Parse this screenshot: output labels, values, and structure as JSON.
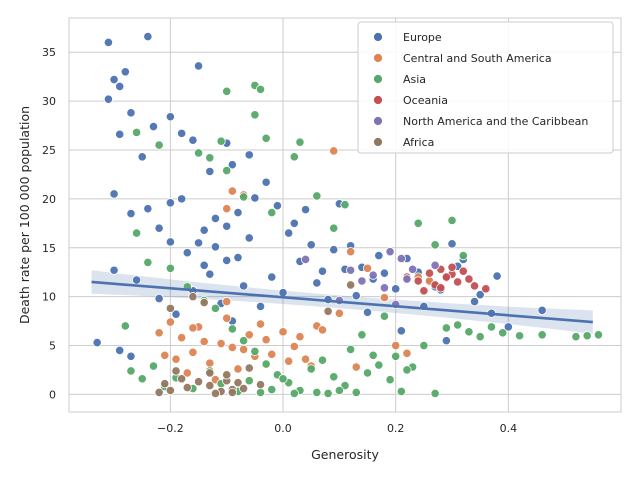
{
  "chart_data": {
    "type": "scatter",
    "title": "",
    "xlabel": "Generosity",
    "ylabel": "Death rate per 100 000 population",
    "xlim": [
      -0.38,
      0.6
    ],
    "ylim": [
      -1.8,
      38.5
    ],
    "x_ticks": [
      -0.2,
      0.0,
      0.2,
      0.4
    ],
    "x_tick_labels": [
      "−0.2",
      "0.0",
      "0.2",
      "0.4"
    ],
    "y_ticks": [
      0,
      5,
      10,
      15,
      20,
      25,
      30,
      35
    ],
    "y_tick_labels": [
      "0",
      "5",
      "10",
      "15",
      "20",
      "25",
      "30",
      "35"
    ],
    "grid": true,
    "legend_position": "top-right",
    "regression_line": {
      "x": [
        -0.34,
        0.55
      ],
      "y": [
        11.5,
        7.4
      ],
      "color": "#4c72b0"
    },
    "series": [
      {
        "name": "Europe",
        "color": "#4c72b0",
        "points": [
          [
            -0.31,
            36.0
          ],
          [
            -0.24,
            36.6
          ],
          [
            -0.15,
            33.6
          ],
          [
            -0.28,
            33.0
          ],
          [
            -0.3,
            32.2
          ],
          [
            -0.31,
            30.2
          ],
          [
            -0.29,
            31.5
          ],
          [
            -0.27,
            28.8
          ],
          [
            -0.29,
            26.6
          ],
          [
            -0.25,
            24.3
          ],
          [
            -0.23,
            27.4
          ],
          [
            -0.2,
            28.4
          ],
          [
            -0.18,
            26.7
          ],
          [
            -0.16,
            26.0
          ],
          [
            -0.1,
            25.7
          ],
          [
            -0.06,
            24.5
          ],
          [
            -0.09,
            23.5
          ],
          [
            -0.13,
            22.8
          ],
          [
            -0.3,
            20.5
          ],
          [
            -0.27,
            18.5
          ],
          [
            -0.24,
            19.0
          ],
          [
            -0.22,
            17.0
          ],
          [
            -0.2,
            15.6
          ],
          [
            -0.17,
            14.5
          ],
          [
            -0.14,
            16.8
          ],
          [
            -0.12,
            15.1
          ],
          [
            -0.1,
            13.7
          ],
          [
            -0.08,
            18.6
          ],
          [
            -0.05,
            20.1
          ],
          [
            -0.03,
            21.7
          ],
          [
            -0.01,
            19.3
          ],
          [
            0.02,
            17.5
          ],
          [
            0.05,
            15.3
          ],
          [
            0.07,
            12.6
          ],
          [
            0.09,
            14.8
          ],
          [
            0.12,
            15.2
          ],
          [
            0.14,
            13.0
          ],
          [
            0.16,
            11.8
          ],
          [
            0.18,
            12.4
          ],
          [
            0.2,
            10.8
          ],
          [
            0.22,
            13.9
          ],
          [
            0.24,
            12.5
          ],
          [
            0.26,
            11.5
          ],
          [
            0.28,
            10.7
          ],
          [
            0.3,
            15.4
          ],
          [
            0.32,
            13.8
          ],
          [
            0.34,
            9.5
          ],
          [
            0.37,
            8.3
          ],
          [
            0.4,
            6.9
          ],
          [
            0.46,
            8.6
          ],
          [
            -0.26,
            11.7
          ],
          [
            -0.22,
            9.8
          ],
          [
            -0.19,
            8.2
          ],
          [
            -0.16,
            10.6
          ],
          [
            -0.13,
            12.3
          ],
          [
            -0.11,
            9.3
          ],
          [
            -0.09,
            7.5
          ],
          [
            -0.07,
            11.1
          ],
          [
            -0.04,
            9.0
          ],
          [
            -0.02,
            12.0
          ],
          [
            0.0,
            10.4
          ],
          [
            0.03,
            13.6
          ],
          [
            0.06,
            11.4
          ],
          [
            0.08,
            9.7
          ],
          [
            0.11,
            12.8
          ],
          [
            0.13,
            10.1
          ],
          [
            0.15,
            8.4
          ],
          [
            0.17,
            14.2
          ],
          [
            -0.3,
            12.7
          ],
          [
            -0.33,
            5.3
          ],
          [
            -0.29,
            4.5
          ],
          [
            -0.27,
            3.9
          ],
          [
            0.35,
            10.2
          ],
          [
            0.38,
            12.1
          ],
          [
            -0.06,
            16.0
          ],
          [
            -0.08,
            14.0
          ],
          [
            -0.15,
            15.5
          ],
          [
            -0.12,
            18.0
          ],
          [
            0.01,
            16.5
          ],
          [
            0.04,
            18.9
          ],
          [
            0.1,
            19.5
          ],
          [
            -0.2,
            19.6
          ],
          [
            -0.18,
            20.0
          ],
          [
            -0.14,
            13.2
          ],
          [
            -0.1,
            17.2
          ],
          [
            0.27,
            11.0
          ],
          [
            0.31,
            13.1
          ],
          [
            0.25,
            9.0
          ],
          [
            0.21,
            6.5
          ],
          [
            0.29,
            5.5
          ]
        ]
      },
      {
        "name": "Central and South America",
        "color": "#dd8452",
        "points": [
          [
            -0.2,
            7.4
          ],
          [
            -0.18,
            5.8
          ],
          [
            -0.16,
            4.3
          ],
          [
            -0.15,
            6.9
          ],
          [
            -0.13,
            3.2
          ],
          [
            -0.11,
            5.2
          ],
          [
            -0.1,
            7.8
          ],
          [
            -0.09,
            4.8
          ],
          [
            -0.08,
            2.6
          ],
          [
            -0.06,
            6.1
          ],
          [
            -0.05,
            3.9
          ],
          [
            -0.03,
            5.6
          ],
          [
            -0.02,
            4.1
          ],
          [
            0.0,
            6.4
          ],
          [
            0.01,
            3.4
          ],
          [
            0.03,
            5.9
          ],
          [
            0.05,
            2.9
          ],
          [
            0.06,
            7.0
          ],
          [
            -0.19,
            3.6
          ],
          [
            -0.17,
            2.2
          ],
          [
            -0.12,
            1.5
          ],
          [
            -0.1,
            9.5
          ],
          [
            -0.09,
            20.8
          ],
          [
            -0.07,
            20.4
          ],
          [
            -0.1,
            19.0
          ],
          [
            0.09,
            24.9
          ],
          [
            0.12,
            14.6
          ],
          [
            0.15,
            12.9
          ],
          [
            0.18,
            9.9
          ],
          [
            0.2,
            5.0
          ],
          [
            0.22,
            4.2
          ],
          [
            0.24,
            12.0
          ],
          [
            0.26,
            11.6
          ],
          [
            -0.22,
            6.3
          ],
          [
            -0.14,
            5.4
          ],
          [
            -0.07,
            4.6
          ],
          [
            -0.04,
            7.2
          ],
          [
            0.02,
            4.9
          ],
          [
            0.04,
            3.6
          ],
          [
            0.07,
            6.6
          ],
          [
            0.1,
            8.3
          ],
          [
            0.13,
            2.8
          ],
          [
            -0.21,
            4.0
          ],
          [
            -0.16,
            6.8
          ]
        ]
      },
      {
        "name": "Asia",
        "color": "#55a868",
        "points": [
          [
            -0.26,
            26.8
          ],
          [
            -0.22,
            25.5
          ],
          [
            -0.15,
            24.7
          ],
          [
            -0.13,
            24.2
          ],
          [
            -0.11,
            25.9
          ],
          [
            -0.1,
            31.0
          ],
          [
            -0.05,
            31.6
          ],
          [
            -0.04,
            31.2
          ],
          [
            -0.05,
            28.6
          ],
          [
            -0.03,
            26.2
          ],
          [
            0.02,
            24.3
          ],
          [
            0.03,
            25.8
          ],
          [
            -0.26,
            16.5
          ],
          [
            -0.24,
            13.5
          ],
          [
            -0.2,
            12.9
          ],
          [
            -0.17,
            11.0
          ],
          [
            -0.14,
            9.6
          ],
          [
            -0.12,
            8.8
          ],
          [
            -0.09,
            6.7
          ],
          [
            -0.07,
            5.5
          ],
          [
            -0.05,
            4.4
          ],
          [
            -0.03,
            3.1
          ],
          [
            -0.01,
            2.0
          ],
          [
            0.01,
            1.2
          ],
          [
            0.03,
            0.4
          ],
          [
            0.05,
            2.6
          ],
          [
            0.07,
            3.5
          ],
          [
            0.09,
            1.8
          ],
          [
            0.11,
            0.9
          ],
          [
            0.13,
            0.2
          ],
          [
            0.15,
            2.2
          ],
          [
            0.17,
            3.0
          ],
          [
            0.19,
            1.5
          ],
          [
            0.21,
            0.3
          ],
          [
            0.23,
            2.8
          ],
          [
            0.25,
            5.0
          ],
          [
            0.27,
            0.1
          ],
          [
            0.29,
            6.8
          ],
          [
            0.31,
            7.1
          ],
          [
            0.33,
            6.4
          ],
          [
            0.35,
            5.9
          ],
          [
            0.37,
            6.9
          ],
          [
            0.39,
            6.3
          ],
          [
            0.42,
            6.0
          ],
          [
            0.46,
            6.1
          ],
          [
            0.52,
            5.9
          ],
          [
            0.54,
            6.0
          ],
          [
            0.56,
            6.1
          ],
          [
            -0.28,
            7.0
          ],
          [
            -0.27,
            2.4
          ],
          [
            -0.25,
            1.6
          ],
          [
            -0.23,
            2.9
          ],
          [
            -0.21,
            0.8
          ],
          [
            -0.19,
            1.7
          ],
          [
            -0.16,
            0.6
          ],
          [
            -0.13,
            2.4
          ],
          [
            -0.11,
            1.1
          ],
          [
            -0.08,
            0.3
          ],
          [
            -0.06,
            1.4
          ],
          [
            -0.04,
            0.2
          ],
          [
            -0.02,
            0.5
          ],
          [
            0.0,
            1.6
          ],
          [
            0.02,
            0.1
          ],
          [
            0.06,
            0.2
          ],
          [
            0.08,
            0.1
          ],
          [
            0.1,
            0.4
          ],
          [
            0.12,
            4.6
          ],
          [
            0.14,
            6.1
          ],
          [
            0.16,
            4.0
          ],
          [
            0.18,
            8.0
          ],
          [
            0.2,
            3.9
          ],
          [
            0.22,
            2.5
          ],
          [
            0.24,
            17.5
          ],
          [
            0.27,
            15.3
          ],
          [
            0.3,
            17.8
          ],
          [
            0.32,
            14.2
          ],
          [
            0.06,
            20.3
          ],
          [
            0.09,
            17.0
          ],
          [
            0.11,
            19.4
          ],
          [
            -0.07,
            20.2
          ],
          [
            -0.02,
            18.6
          ],
          [
            -0.1,
            22.9
          ]
        ]
      },
      {
        "name": "Oceania",
        "color": "#c44e52",
        "points": [
          [
            0.22,
            12.0
          ],
          [
            0.24,
            11.6
          ],
          [
            0.26,
            12.4
          ],
          [
            0.27,
            11.2
          ],
          [
            0.28,
            12.8
          ],
          [
            0.29,
            11.9
          ],
          [
            0.3,
            12.3
          ],
          [
            0.31,
            11.5
          ],
          [
            0.32,
            12.6
          ],
          [
            0.33,
            11.8
          ],
          [
            0.34,
            11.1
          ],
          [
            0.36,
            10.8
          ],
          [
            0.25,
            10.6
          ],
          [
            0.28,
            10.9
          ],
          [
            0.3,
            13.0
          ],
          [
            0.29,
            12.0
          ]
        ]
      },
      {
        "name": "North America and the Caribbean",
        "color": "#8172b3",
        "points": [
          [
            0.19,
            14.6
          ],
          [
            0.21,
            13.9
          ],
          [
            0.22,
            11.8
          ],
          [
            0.18,
            10.9
          ],
          [
            0.16,
            12.2
          ],
          [
            0.04,
            13.8
          ],
          [
            0.1,
            9.6
          ],
          [
            0.2,
            9.2
          ],
          [
            0.23,
            12.8
          ],
          [
            0.14,
            11.6
          ],
          [
            0.27,
            13.2
          ],
          [
            0.12,
            12.7
          ]
        ]
      },
      {
        "name": "Africa",
        "color": "#937860",
        "points": [
          [
            -0.22,
            0.2
          ],
          [
            -0.21,
            1.1
          ],
          [
            -0.2,
            0.4
          ],
          [
            -0.18,
            1.6
          ],
          [
            -0.17,
            0.7
          ],
          [
            -0.15,
            1.3
          ],
          [
            -0.13,
            0.9
          ],
          [
            -0.11,
            0.3
          ],
          [
            -0.1,
            1.4
          ],
          [
            -0.09,
            0.5
          ],
          [
            -0.08,
            1.2
          ],
          [
            -0.07,
            0.6
          ],
          [
            -0.06,
            2.7
          ],
          [
            -0.1,
            2.0
          ],
          [
            -0.04,
            1.0
          ],
          [
            -0.19,
            2.4
          ],
          [
            -0.13,
            2.2
          ],
          [
            -0.16,
            10.0
          ],
          [
            -0.14,
            9.4
          ],
          [
            -0.2,
            8.8
          ],
          [
            0.08,
            8.5
          ],
          [
            0.12,
            11.2
          ],
          [
            -0.09,
            0.2
          ],
          [
            -0.12,
            0.1
          ]
        ]
      }
    ]
  }
}
